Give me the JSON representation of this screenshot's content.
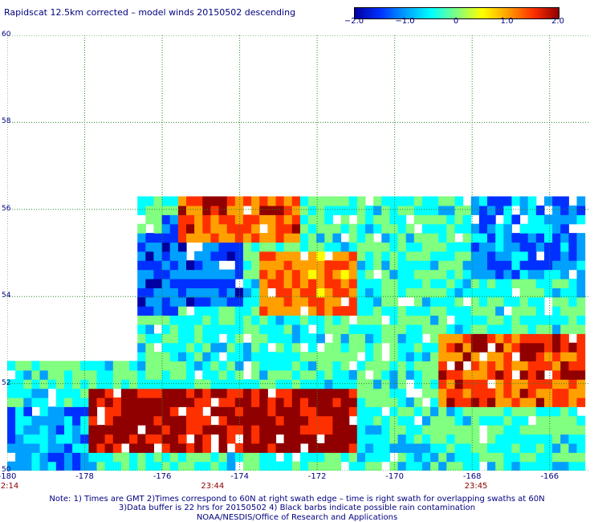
{
  "title": "Rapidscat 12.5km corrected – model winds 20150502 descending",
  "colorbar": {
    "tick_labels": [
      "−2.0",
      "−1.0",
      "0",
      "1.0",
      "2.0"
    ],
    "tick_values": [
      -2.0,
      -1.0,
      0,
      1.0,
      2.0
    ],
    "range": [
      -2.0,
      2.0
    ],
    "colors": [
      "#0000a0",
      "#0030ff",
      "#00a0ff",
      "#00ffff",
      "#80ff80",
      "#ffff00",
      "#ffa000",
      "#ff3000",
      "#900000"
    ]
  },
  "chart_data": {
    "type": "heatmap",
    "title": "Rapidscat 12.5km corrected – model winds 20150502 descending",
    "xlim": [
      -180,
      -165
    ],
    "ylim": [
      50,
      60
    ],
    "x_ticks": [
      -180,
      -178,
      -176,
      -174,
      -172,
      -170,
      -168,
      -166
    ],
    "x_tick_labels": [
      "-180",
      "-178",
      "-176",
      "-174",
      "-172",
      "-170",
      "-168",
      "-166"
    ],
    "y_ticks": [
      50,
      52,
      54,
      56,
      58,
      60
    ],
    "y_tick_labels": [
      "50",
      "52",
      "54",
      "56",
      "58",
      "60"
    ],
    "grid": true,
    "value_range": [
      -2.0,
      2.0
    ],
    "swath_regions": [
      {
        "lon": [
          -176.7,
          -165
        ],
        "lat": [
          52.0,
          56.4
        ]
      },
      {
        "lon": [
          -180,
          -176.7
        ],
        "lat": [
          50.0,
          52.6
        ]
      },
      {
        "lon": [
          -178.3,
          -165
        ],
        "lat": [
          50.0,
          52.0
        ]
      }
    ],
    "value_zones": [
      {
        "lon": [
          -178.0,
          -171.0
        ],
        "lat": [
          50.4,
          51.8
        ],
        "value": 2.0
      },
      {
        "lon": [
          -175.5,
          -172.5
        ],
        "lat": [
          55.3,
          56.3
        ],
        "value": 1.4
      },
      {
        "lon": [
          -173.5,
          -171.0
        ],
        "lat": [
          53.5,
          55.0
        ],
        "value": 1.2
      },
      {
        "lon": [
          -168.8,
          -165.0
        ],
        "lat": [
          51.5,
          53.2
        ],
        "value": 1.5
      },
      {
        "lon": [
          -170.0,
          -168.0
        ],
        "lat": [
          50.0,
          51.5
        ],
        "value": -0.4
      },
      {
        "lon": [
          -176.0,
          -174.0
        ],
        "lat": [
          53.8,
          55.8
        ],
        "value": -1.3
      },
      {
        "lon": [
          -168.0,
          -165.0
        ],
        "lat": [
          54.5,
          56.2
        ],
        "value": -1.1
      },
      {
        "lon": [
          -177.0,
          -175.5
        ],
        "lat": [
          53.5,
          55.5
        ],
        "value": -1.4
      },
      {
        "lon": [
          -180.0,
          -178.0
        ],
        "lat": [
          50.0,
          51.5
        ],
        "value": -0.9
      }
    ],
    "time_labels": [
      {
        "lon": -180,
        "label": "2:14"
      },
      {
        "lon": -174.7,
        "label": "23:44"
      },
      {
        "lon": -167.9,
        "label": "23:45"
      }
    ]
  },
  "notes": [
    "Note: 1) Times are GMT 2)Times correspond to 60N at right swath edge – time is right swath for overlapping swaths at 60N",
    "3)Data buffer is 22 hrs for 20150502 4) Black barbs indicate possible rain contamination",
    "NOAA/NESDIS/Office of Research and Applications"
  ]
}
